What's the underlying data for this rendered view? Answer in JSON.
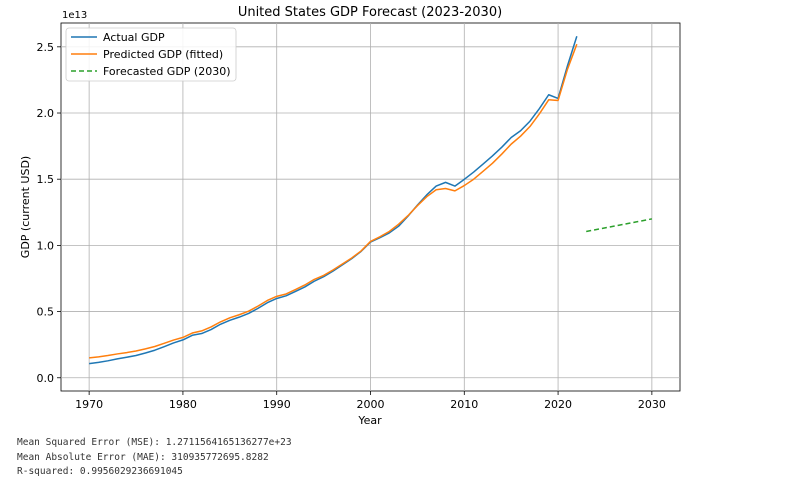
{
  "chart_data": {
    "type": "line",
    "title": "United States GDP Forecast (2023-2030)",
    "xlabel": "Year",
    "ylabel": "GDP (current USD)",
    "y_offset_label": "1e13",
    "xlim": [
      1967,
      2033
    ],
    "ylim": [
      -0.1,
      2.68
    ],
    "y_unit": "1e13 USD",
    "xticks": [
      1970,
      1980,
      1990,
      2000,
      2010,
      2020,
      2030
    ],
    "yticks": [
      0.0,
      0.5,
      1.0,
      1.5,
      2.0,
      2.5
    ],
    "ytick_labels": [
      "0.0",
      "0.5",
      "1.0",
      "1.5",
      "2.0",
      "2.5"
    ],
    "grid": true,
    "legend_position": "upper-left",
    "colors": {
      "actual": "#1f77b4",
      "predicted": "#ff7f0e",
      "forecast": "#2ca02c"
    },
    "series": [
      {
        "name": "Actual GDP",
        "style": "solid",
        "x": [
          1970,
          1971,
          1972,
          1973,
          1974,
          1975,
          1976,
          1977,
          1978,
          1979,
          1980,
          1981,
          1982,
          1983,
          1984,
          1985,
          1986,
          1987,
          1988,
          1989,
          1990,
          1991,
          1992,
          1993,
          1994,
          1995,
          1996,
          1997,
          1998,
          1999,
          2000,
          2001,
          2002,
          2003,
          2004,
          2005,
          2006,
          2007,
          2008,
          2009,
          2010,
          2011,
          2012,
          2013,
          2014,
          2015,
          2016,
          2017,
          2018,
          2019,
          2020,
          2021,
          2022
        ],
        "values": [
          0.107,
          0.116,
          0.128,
          0.143,
          0.155,
          0.168,
          0.187,
          0.208,
          0.235,
          0.263,
          0.286,
          0.321,
          0.334,
          0.364,
          0.404,
          0.434,
          0.458,
          0.486,
          0.524,
          0.567,
          0.599,
          0.619,
          0.652,
          0.686,
          0.729,
          0.763,
          0.806,
          0.853,
          0.9,
          0.955,
          1.025,
          1.058,
          1.094,
          1.145,
          1.221,
          1.304,
          1.382,
          1.448,
          1.476,
          1.448,
          1.499,
          1.554,
          1.614,
          1.676,
          1.742,
          1.815,
          1.866,
          1.938,
          2.033,
          2.138,
          2.11,
          2.356,
          2.58
        ]
      },
      {
        "name": "Predicted GDP (fitted)",
        "style": "solid",
        "x": [
          1970,
          1971,
          1972,
          1973,
          1974,
          1975,
          1976,
          1977,
          1978,
          1979,
          1980,
          1981,
          1982,
          1983,
          1984,
          1985,
          1986,
          1987,
          1988,
          1989,
          1990,
          1991,
          1992,
          1993,
          1994,
          1995,
          1996,
          1997,
          1998,
          1999,
          2000,
          2001,
          2002,
          2003,
          2004,
          2005,
          2006,
          2007,
          2008,
          2009,
          2010,
          2011,
          2012,
          2013,
          2014,
          2015,
          2016,
          2017,
          2018,
          2019,
          2020,
          2021,
          2022
        ],
        "values": [
          0.15,
          0.158,
          0.168,
          0.18,
          0.19,
          0.202,
          0.218,
          0.236,
          0.26,
          0.285,
          0.305,
          0.338,
          0.354,
          0.384,
          0.422,
          0.453,
          0.476,
          0.503,
          0.541,
          0.584,
          0.615,
          0.633,
          0.666,
          0.701,
          0.743,
          0.773,
          0.814,
          0.859,
          0.905,
          0.958,
          1.03,
          1.065,
          1.105,
          1.16,
          1.225,
          1.3,
          1.368,
          1.42,
          1.43,
          1.412,
          1.452,
          1.5,
          1.56,
          1.62,
          1.69,
          1.765,
          1.825,
          1.898,
          1.993,
          2.1,
          2.095,
          2.33,
          2.52
        ]
      },
      {
        "name": "Forecasted GDP (2030)",
        "style": "dashed",
        "x": [
          2023,
          2030
        ],
        "values": [
          1.105,
          1.2
        ]
      }
    ]
  },
  "stats": {
    "mse": "Mean Squared Error (MSE): 1.2711564165136277e+23",
    "mae": "Mean Absolute Error (MAE): 310935772695.8282",
    "r2": "R-squared: 0.9956029236691045"
  }
}
